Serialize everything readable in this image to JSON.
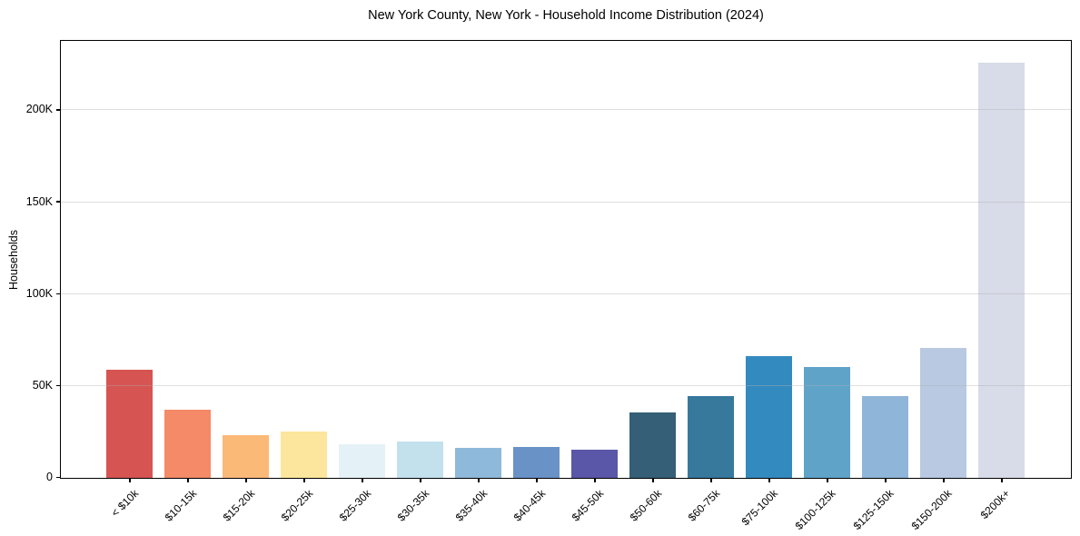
{
  "chart_data": {
    "type": "bar",
    "title": "New York County, New York - Household Income Distribution (2024)",
    "ylabel": "Households",
    "xlabel": "",
    "categories": [
      "< $10k",
      "$10-15k",
      "$15-20k",
      "$20-25k",
      "$25-30k",
      "$30-35k",
      "$35-40k",
      "$40-45k",
      "$45-50k",
      "$50-60k",
      "$60-75k",
      "$75-100k",
      "$100-125k",
      "$125-150k",
      "$150-200k",
      "$200k+"
    ],
    "values": [
      58800,
      37000,
      23400,
      25100,
      18200,
      19700,
      16200,
      16700,
      15200,
      35500,
      44700,
      66200,
      60100,
      44400,
      70900,
      226000
    ],
    "bar_colors": [
      "#d65452",
      "#f48a67",
      "#fbb977",
      "#fce69d",
      "#e4f1f7",
      "#c3e1ed",
      "#8eb9da",
      "#6992c6",
      "#5a57a8",
      "#355f76",
      "#37789d",
      "#338abf",
      "#5fa3c9",
      "#8fb5d8",
      "#b8c9e1",
      "#d8dbe8"
    ],
    "ylim": [
      0,
      237300
    ],
    "ytick_values": [
      0,
      50000,
      100000,
      150000,
      200000
    ],
    "ytick_labels": [
      "0",
      "50K",
      "100K",
      "150K",
      "200K"
    ],
    "grid": true,
    "grid_color": "rgba(176,176,176,0.4)",
    "legend_position": "none",
    "frame_color": "#000000"
  }
}
